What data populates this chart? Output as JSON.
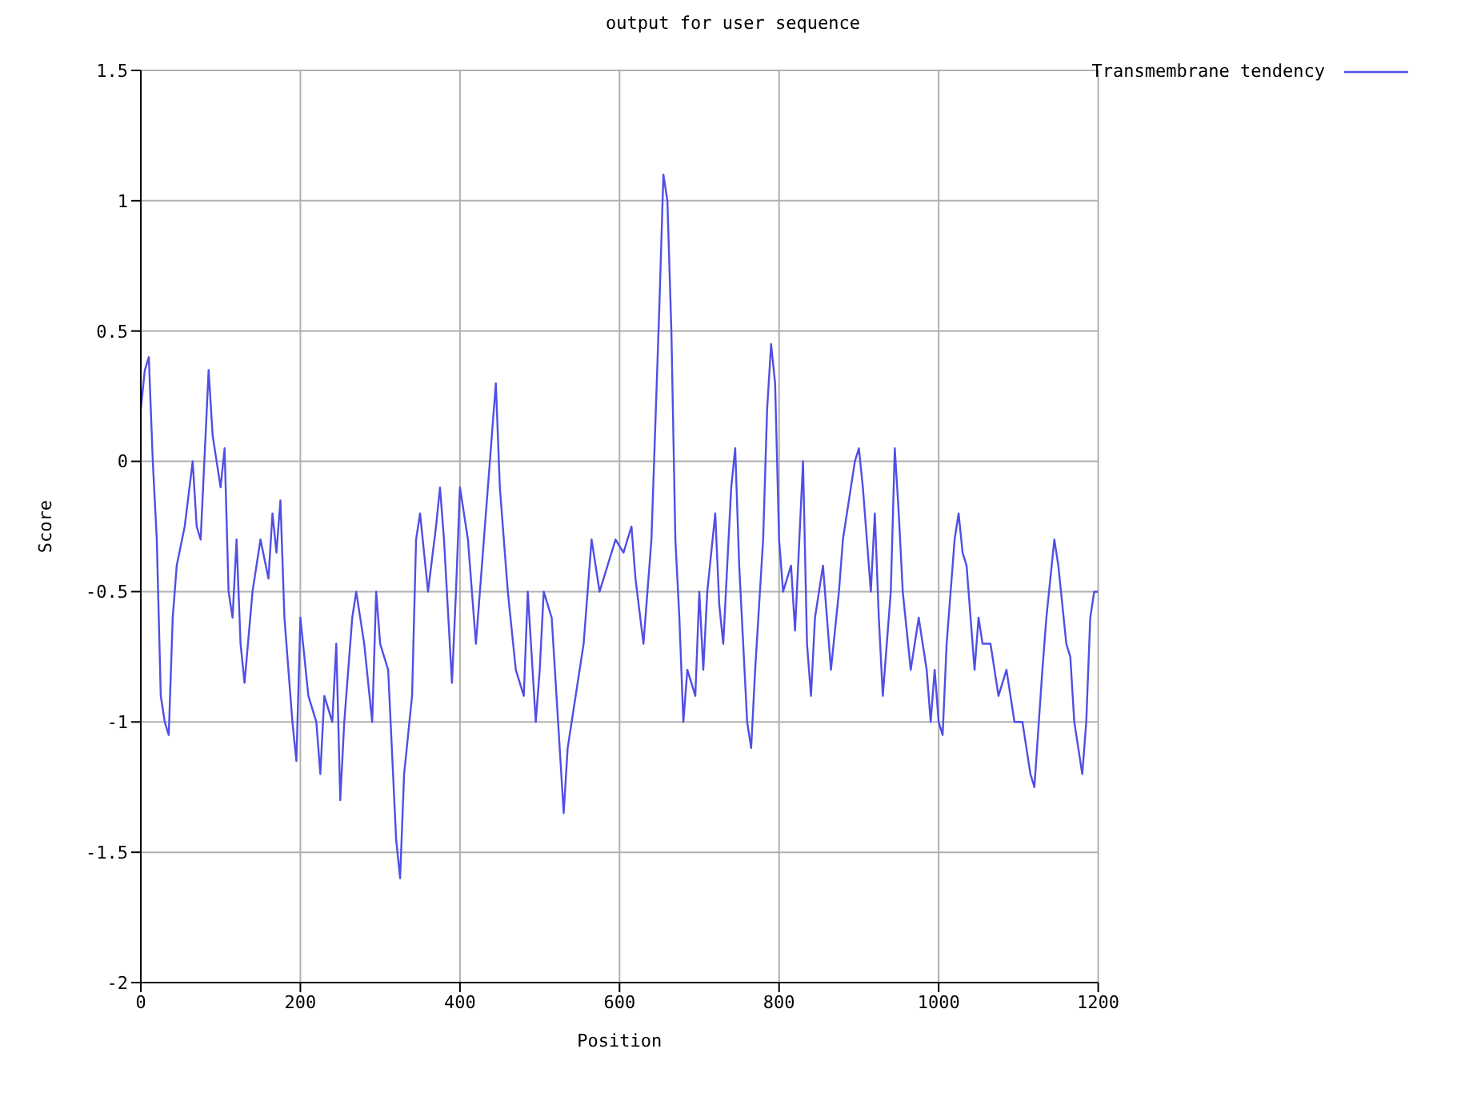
{
  "chart_data": {
    "type": "line",
    "title": "output for user sequence",
    "xlabel": "Position",
    "ylabel": "Score",
    "xlim": [
      0,
      1200
    ],
    "xticks": [
      0,
      200,
      400,
      600,
      800,
      1000,
      1200
    ],
    "ylim": [
      -2,
      1.5
    ],
    "yticks": [
      -2,
      -1.5,
      -1,
      -0.5,
      0,
      0.5,
      1,
      1.5
    ],
    "grid": true,
    "legend": "top right",
    "marker": "none",
    "line_style": "solid",
    "series": [
      {
        "name": "Transmembrane tendency",
        "color": "#4f4fe6",
        "x": [
          0,
          5,
          10,
          15,
          20,
          25,
          30,
          35,
          40,
          45,
          55,
          65,
          70,
          75,
          85,
          90,
          95,
          100,
          105,
          110,
          115,
          120,
          125,
          130,
          140,
          150,
          160,
          165,
          170,
          175,
          180,
          185,
          190,
          195,
          200,
          210,
          220,
          225,
          230,
          240,
          245,
          250,
          255,
          265,
          270,
          280,
          290,
          295,
          300,
          310,
          320,
          325,
          330,
          340,
          345,
          350,
          360,
          370,
          375,
          380,
          390,
          395,
          400,
          410,
          420,
          430,
          440,
          445,
          450,
          455,
          460,
          470,
          480,
          485,
          495,
          500,
          505,
          515,
          525,
          530,
          535,
          545,
          555,
          565,
          575,
          585,
          595,
          605,
          615,
          620,
          630,
          640,
          650,
          655,
          660,
          665,
          670,
          675,
          680,
          685,
          695,
          700,
          705,
          710,
          720,
          725,
          730,
          740,
          745,
          750,
          760,
          765,
          770,
          780,
          785,
          790,
          795,
          800,
          805,
          815,
          820,
          830,
          835,
          840,
          845,
          855,
          860,
          865,
          875,
          880,
          890,
          895,
          900,
          905,
          915,
          920,
          925,
          930,
          940,
          945,
          950,
          955,
          965,
          975,
          985,
          990,
          995,
          1000,
          1005,
          1010,
          1020,
          1025,
          1030,
          1035,
          1045,
          1050,
          1055,
          1065,
          1075,
          1085,
          1095,
          1105,
          1115,
          1120,
          1130,
          1135,
          1145,
          1150,
          1160,
          1165,
          1170,
          1180,
          1185,
          1190,
          1195,
          1200
        ],
        "values": [
          0.2,
          0.35,
          0.4,
          0,
          -0.3,
          -0.9,
          -1,
          -1.05,
          -0.6,
          -0.4,
          -0.25,
          0,
          -0.25,
          -0.3,
          0.35,
          0.1,
          0,
          -0.1,
          0.05,
          -0.5,
          -0.6,
          -0.3,
          -0.7,
          -0.85,
          -0.5,
          -0.3,
          -0.45,
          -0.2,
          -0.35,
          -0.15,
          -0.6,
          -0.8,
          -1,
          -1.15,
          -0.6,
          -0.9,
          -1,
          -1.2,
          -0.9,
          -1,
          -0.7,
          -1.3,
          -1,
          -0.6,
          -0.5,
          -0.7,
          -1,
          -0.5,
          -0.7,
          -0.8,
          -1.45,
          -1.6,
          -1.2,
          -0.9,
          -0.3,
          -0.2,
          -0.5,
          -0.25,
          -0.1,
          -0.3,
          -0.85,
          -0.5,
          -0.1,
          -0.3,
          -0.7,
          -0.3,
          0.1,
          0.3,
          -0.1,
          -0.3,
          -0.5,
          -0.8,
          -0.9,
          -0.5,
          -1,
          -0.8,
          -0.5,
          -0.6,
          -1.1,
          -1.35,
          -1.1,
          -0.9,
          -0.7,
          -0.3,
          -0.5,
          -0.4,
          -0.3,
          -0.35,
          -0.25,
          -0.45,
          -0.7,
          -0.3,
          0.6,
          1.1,
          1,
          0.5,
          -0.3,
          -0.6,
          -1,
          -0.8,
          -0.9,
          -0.5,
          -0.8,
          -0.5,
          -0.2,
          -0.55,
          -0.7,
          -0.1,
          0.05,
          -0.4,
          -1,
          -1.1,
          -0.8,
          -0.3,
          0.2,
          0.45,
          0.3,
          -0.3,
          -0.5,
          -0.4,
          -0.65,
          0,
          -0.7,
          -0.9,
          -0.6,
          -0.4,
          -0.6,
          -0.8,
          -0.5,
          -0.3,
          -0.1,
          0,
          0.05,
          -0.1,
          -0.5,
          -0.2,
          -0.6,
          -0.9,
          -0.5,
          0.05,
          -0.2,
          -0.5,
          -0.8,
          -0.6,
          -0.8,
          -1,
          -0.8,
          -1,
          -1.05,
          -0.7,
          -0.3,
          -0.2,
          -0.35,
          -0.4,
          -0.8,
          -0.6,
          -0.7,
          -0.7,
          -0.9,
          -0.8,
          -1,
          -1,
          -1.2,
          -1.25,
          -0.8,
          -0.6,
          -0.3,
          -0.4,
          -0.7,
          -0.75,
          -1,
          -1.2,
          -1,
          -0.6,
          -0.5,
          -0.5
        ]
      }
    ]
  }
}
